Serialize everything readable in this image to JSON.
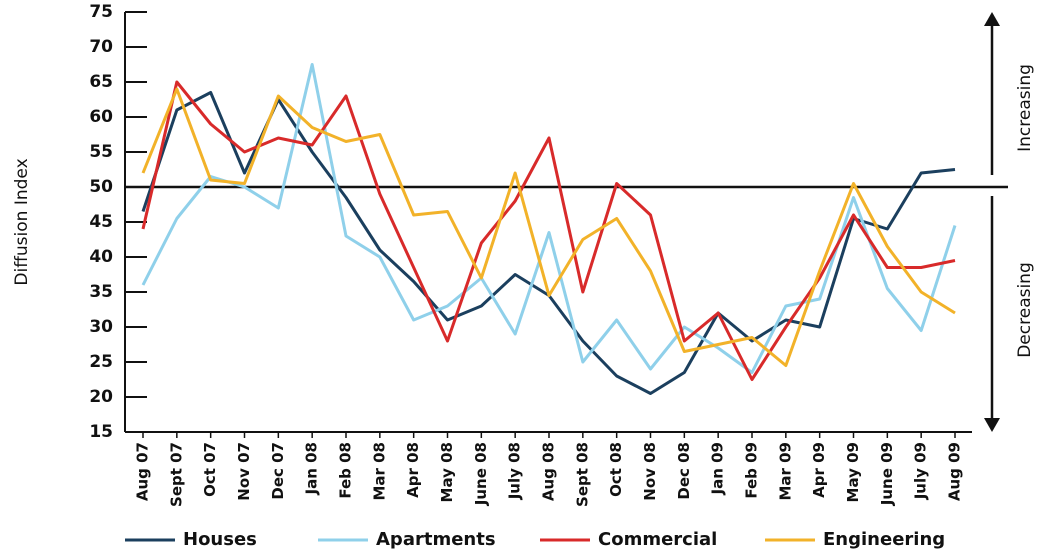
{
  "chart_data": {
    "type": "line",
    "y_label": "Diffusion Index",
    "annotations": [
      "Increasing",
      "Decreasing"
    ],
    "reference_line": 50,
    "categories": [
      "Aug 07",
      "Sept 07",
      "Oct 07",
      "Nov 07",
      "Dec 07",
      "Jan 08",
      "Feb 08",
      "Mar 08",
      "Apr 08",
      "May 08",
      "June 08",
      "July 08",
      "Aug 08",
      "Sept 08",
      "Oct 08",
      "Nov 08",
      "Dec 08",
      "Jan 09",
      "Feb 09",
      "Mar 09",
      "Apr 09",
      "May 09",
      "June 09",
      "July 09",
      "Aug 09"
    ],
    "series": [
      {
        "name": "Houses",
        "color": "#1b3f5e",
        "values": [
          46.5,
          61,
          63.5,
          52,
          62.5,
          55,
          48.5,
          41,
          36.5,
          31,
          33,
          37.5,
          34.5,
          28,
          23,
          20.5,
          23.5,
          32,
          28,
          31,
          30,
          45.5,
          44,
          52,
          52.5
        ]
      },
      {
        "name": "Apartments",
        "color": "#8fd0ea",
        "values": [
          36,
          45.5,
          51.5,
          50,
          47,
          67.5,
          43,
          40,
          31,
          33,
          37,
          29,
          43.5,
          25,
          31,
          24,
          30,
          27,
          23.5,
          33,
          34,
          48.5,
          35.5,
          29.5,
          44.5
        ]
      },
      {
        "name": "Commercial",
        "color": "#d82a2a",
        "values": [
          44,
          65,
          59,
          55,
          57,
          56,
          63,
          49,
          38.5,
          28,
          42,
          48,
          57,
          35,
          50.5,
          46,
          28,
          32,
          22.5,
          30,
          37,
          46,
          38.5,
          38.5,
          39.5
        ]
      },
      {
        "name": "Engineering",
        "color": "#f2b229",
        "values": [
          52,
          64,
          51,
          50.5,
          63,
          58.5,
          56.5,
          57.5,
          46,
          46.5,
          37,
          52,
          34.5,
          42.5,
          45.5,
          38,
          26.5,
          27.5,
          28.5,
          24.5,
          38,
          50.5,
          41.5,
          35,
          32
        ]
      }
    ],
    "ylim": [
      15,
      75
    ],
    "yticks": [
      15,
      20,
      25,
      30,
      35,
      40,
      45,
      50,
      55,
      60,
      65,
      70,
      75
    ]
  }
}
